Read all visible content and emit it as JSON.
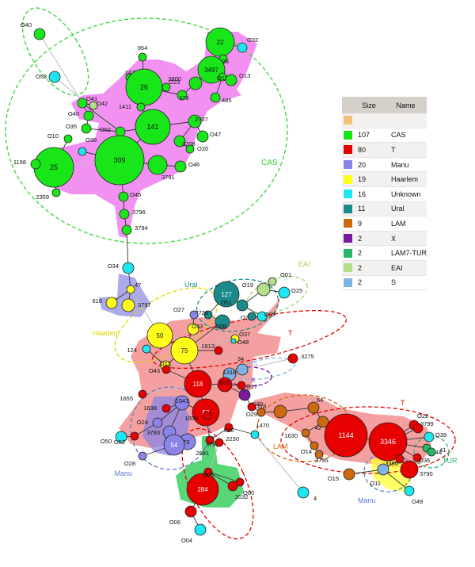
{
  "legend": {
    "header_size": "Size",
    "header_name": "Name",
    "rows": [
      {
        "color": "#f2c27a",
        "size": "",
        "name": ""
      },
      {
        "color": "#19e619",
        "size": "107",
        "name": "CAS"
      },
      {
        "color": "#e60000",
        "size": "80",
        "name": "T"
      },
      {
        "color": "#8a84e6",
        "size": "20",
        "name": "Manu"
      },
      {
        "color": "#ffff1a",
        "size": "19",
        "name": "Haarlem"
      },
      {
        "color": "#1ee6f0",
        "size": "16",
        "name": "Unknown"
      },
      {
        "color": "#1a8a8a",
        "size": "11",
        "name": "Ural"
      },
      {
        "color": "#cc6a12",
        "size": "9",
        "name": "LAM"
      },
      {
        "color": "#7a1a9e",
        "size": "2",
        "name": "X"
      },
      {
        "color": "#26b86a",
        "size": "2",
        "name": "LAM7-TUR"
      },
      {
        "color": "#b2df8a",
        "size": "2",
        "name": "EAI"
      },
      {
        "color": "#7fb2e6",
        "size": "2",
        "name": "S"
      }
    ]
  },
  "group_labels": [
    {
      "key": "cas",
      "text": "CAS",
      "color": "#2ecc2e"
    },
    {
      "key": "eai",
      "text": "EAI",
      "color": "#9ad66e"
    },
    {
      "key": "ural",
      "text": "Ural",
      "color": "#1a8a8a"
    },
    {
      "key": "haarlem",
      "text": "Haarlem",
      "color": "#e0d800"
    },
    {
      "key": "t1",
      "text": "T",
      "color": "#e60000"
    },
    {
      "key": "s",
      "text": "S",
      "color": "#7fb2e6"
    },
    {
      "key": "x",
      "text": "X",
      "color": "#7a1a9e"
    },
    {
      "key": "lam",
      "text": "LAM",
      "color": "#cc6a12"
    },
    {
      "key": "t2",
      "text": "T",
      "color": "#e60000"
    },
    {
      "key": "tur",
      "text": "TUR",
      "color": "#26b86a"
    },
    {
      "key": "manu1",
      "text": "Manu",
      "color": "#5a7ec8"
    },
    {
      "key": "manu2",
      "text": "Manu",
      "color": "#5a7ec8"
    }
  ],
  "nodes": [
    {
      "id": "O40",
      "type": "CAS"
    },
    {
      "id": "O53",
      "type": "Unknown"
    },
    {
      "id": "954",
      "type": "CAS"
    },
    {
      "id": "22",
      "type": "CAS",
      "label_inside": "22"
    },
    {
      "id": "O32",
      "type": "Unknown"
    },
    {
      "id": "O26",
      "type": "CAS"
    },
    {
      "id": "3497",
      "type": "CAS",
      "label_inside": "3497"
    },
    {
      "id": "O12",
      "type": "CAS"
    },
    {
      "id": "O13",
      "type": "CAS"
    },
    {
      "id": "485",
      "type": "CAS"
    },
    {
      "id": "3800",
      "type": "CAS"
    },
    {
      "id": "247",
      "type": "CAS"
    },
    {
      "id": "26",
      "type": "CAS",
      "label_inside": "26"
    },
    {
      "id": "O23",
      "type": "CAS"
    },
    {
      "id": "379",
      "type": "CAS"
    },
    {
      "id": "O41",
      "type": "CAS"
    },
    {
      "id": "O42",
      "type": "EAI"
    },
    {
      "id": "O40b",
      "type": "CAS"
    },
    {
      "id": "141",
      "type": "CAS",
      "label_inside": "141"
    },
    {
      "id": "1411",
      "type": "CAS"
    },
    {
      "id": "2707",
      "type": "CAS"
    },
    {
      "id": "O47",
      "type": "CAS"
    },
    {
      "id": "O02",
      "type": "CAS"
    },
    {
      "id": "O35",
      "type": "CAS"
    },
    {
      "id": "3708",
      "type": "CAS"
    },
    {
      "id": "O20",
      "type": "CAS"
    },
    {
      "id": "O10",
      "type": "CAS"
    },
    {
      "id": "O38",
      "type": "Unknown"
    },
    {
      "id": "25",
      "type": "CAS",
      "label_inside": "25"
    },
    {
      "id": "1198",
      "type": "CAS"
    },
    {
      "id": "309",
      "type": "CAS",
      "label_inside": "309"
    },
    {
      "id": "3791",
      "type": "CAS"
    },
    {
      "id": "O46",
      "type": "CAS"
    },
    {
      "id": "2359",
      "type": "CAS"
    },
    {
      "id": "O45",
      "type": "CAS"
    },
    {
      "id": "3796",
      "type": "CAS"
    },
    {
      "id": "3794",
      "type": "CAS"
    },
    {
      "id": "O34",
      "type": "Unknown"
    },
    {
      "id": "47",
      "type": "Haarlem"
    },
    {
      "id": "610",
      "type": "Haarlem"
    },
    {
      "id": "3797",
      "type": "Haarlem"
    },
    {
      "id": "127",
      "type": "Ural",
      "label_inside": "127"
    },
    {
      "id": "O19",
      "type": "EAI"
    },
    {
      "id": "O01",
      "type": "EAI"
    },
    {
      "id": "O25",
      "type": "Unknown"
    },
    {
      "id": "O51",
      "type": "Ural"
    },
    {
      "id": "2728",
      "type": "Ural"
    },
    {
      "id": "O21",
      "type": "Unknown"
    },
    {
      "id": "O09",
      "type": "Ural"
    },
    {
      "id": "O27",
      "type": "Manu"
    },
    {
      "id": "O33",
      "type": "Haarlem"
    },
    {
      "id": "O08",
      "type": "Ural"
    },
    {
      "id": "50",
      "type": "Haarlem",
      "label_inside": "50"
    },
    {
      "id": "75",
      "type": "Haarlem",
      "label_inside": "75"
    },
    {
      "id": "O37",
      "type": "Haarlem"
    },
    {
      "id": "O48",
      "type": "Unknown"
    },
    {
      "id": "1913",
      "type": "T"
    },
    {
      "id": "124",
      "type": "Unknown"
    },
    {
      "id": "O12b",
      "type": "Haarlem"
    },
    {
      "id": "O43",
      "type": "T"
    },
    {
      "id": "34",
      "type": "S"
    },
    {
      "id": "3275",
      "type": "T"
    },
    {
      "id": "118",
      "type": "T",
      "label_inside": "118"
    },
    {
      "id": "1318",
      "type": "S"
    },
    {
      "id": "831",
      "type": "T"
    },
    {
      "id": "O17",
      "type": "T"
    },
    {
      "id": "1655",
      "type": "T"
    },
    {
      "id": "1638",
      "type": "T"
    },
    {
      "id": "1541",
      "type": "Manu"
    },
    {
      "id": "53",
      "type": "T",
      "label_inside": "53"
    },
    {
      "id": "1009",
      "type": "T"
    },
    {
      "id": "O30",
      "type": "X"
    },
    {
      "id": "O18",
      "type": "T"
    },
    {
      "id": "O29",
      "type": "LAM"
    },
    {
      "id": "O24",
      "type": "Manu"
    },
    {
      "id": "3793",
      "type": "Manu"
    },
    {
      "id": "873",
      "type": "Manu"
    },
    {
      "id": "54",
      "type": "Manu",
      "label_inside": "54"
    },
    {
      "id": "O50",
      "type": "Unknown"
    },
    {
      "id": "O52",
      "type": "T"
    },
    {
      "id": "O28",
      "type": "Manu"
    },
    {
      "id": "3798",
      "type": "T"
    },
    {
      "id": "516",
      "type": "T"
    },
    {
      "id": "2230",
      "type": "Unknown"
    },
    {
      "id": "2691",
      "type": "T"
    },
    {
      "id": "1470",
      "type": "LAM"
    },
    {
      "id": "64",
      "type": "LAM"
    },
    {
      "id": "42",
      "type": "LAM"
    },
    {
      "id": "1630",
      "type": "LAM"
    },
    {
      "id": "O14",
      "type": "LAM"
    },
    {
      "id": "3795",
      "type": "LAM"
    },
    {
      "id": "1144",
      "type": "T",
      "label_inside": "1144"
    },
    {
      "id": "3346",
      "type": "T",
      "label_inside": "3346"
    },
    {
      "id": "O22",
      "type": "T"
    },
    {
      "id": "3799",
      "type": "T"
    },
    {
      "id": "O39",
      "type": "Unknown"
    },
    {
      "id": "O44",
      "type": "LAM7-TUR"
    },
    {
      "id": "41",
      "type": "LAM7-TUR"
    },
    {
      "id": "O36",
      "type": "T"
    },
    {
      "id": "3790",
      "type": "T"
    },
    {
      "id": "3366",
      "type": "T"
    },
    {
      "id": "O15",
      "type": "LAM"
    },
    {
      "id": "O11",
      "type": "S"
    },
    {
      "id": "O49",
      "type": "Unknown"
    },
    {
      "id": "4",
      "type": "Unknown"
    },
    {
      "id": "284",
      "type": "T",
      "label_inside": "284"
    },
    {
      "id": "O03",
      "type": "T"
    },
    {
      "id": "2032",
      "type": "T"
    },
    {
      "id": "O05",
      "type": "T"
    },
    {
      "id": "O06",
      "type": "T"
    },
    {
      "id": "O04",
      "type": "Unknown"
    }
  ],
  "edges": [
    [
      "O40",
      "O41"
    ],
    [
      "O53",
      "O02"
    ],
    [
      "22",
      "3497"
    ],
    [
      "22",
      "O26"
    ],
    [
      "22",
      "O32"
    ],
    [
      "3497",
      "O12"
    ],
    [
      "O12",
      "O13"
    ],
    [
      "O12",
      "485"
    ],
    [
      "3497",
      "3800"
    ],
    [
      "3800",
      "379"
    ],
    [
      "26",
      "379"
    ],
    [
      "26",
      "247"
    ],
    [
      "26",
      "954"
    ],
    [
      "26",
      "O23"
    ],
    [
      "26",
      "1411"
    ],
    [
      "1411",
      "141"
    ],
    [
      "141",
      "2707"
    ],
    [
      "2707",
      "O47"
    ],
    [
      "2707",
      "3708"
    ],
    [
      "3708",
      "O20"
    ],
    [
      "141",
      "O02"
    ],
    [
      "O02",
      "O35"
    ],
    [
      "O02",
      "O41"
    ],
    [
      "O41",
      "O42"
    ],
    [
      "O41",
      "O40b"
    ],
    [
      "O40b",
      "O35"
    ],
    [
      "O38",
      "309"
    ],
    [
      "O10",
      "25"
    ],
    [
      "25",
      "309"
    ],
    [
      "25",
      "1198"
    ],
    [
      "25",
      "2359"
    ],
    [
      "309",
      "3791"
    ],
    [
      "3791",
      "O46"
    ],
    [
      "309",
      "141"
    ],
    [
      "309",
      "O45"
    ],
    [
      "O45",
      "3796"
    ],
    [
      "3796",
      "3794"
    ],
    [
      "3794",
      "O34"
    ],
    [
      "O34",
      "47"
    ],
    [
      "47",
      "610"
    ],
    [
      "47",
      "3797"
    ],
    [
      "47",
      "50"
    ],
    [
      "50",
      "75"
    ],
    [
      "75",
      "O33"
    ],
    [
      "O33",
      "O27"
    ],
    [
      "75",
      "O08"
    ],
    [
      "O08",
      "2728"
    ],
    [
      "2728",
      "127"
    ],
    [
      "127",
      "O51"
    ],
    [
      "O51",
      "O21"
    ],
    [
      "O21",
      "O09"
    ],
    [
      "O51",
      "O19"
    ],
    [
      "O19",
      "O01"
    ],
    [
      "O19",
      "O25"
    ],
    [
      "75",
      "O37"
    ],
    [
      "O37",
      "O48"
    ],
    [
      "75",
      "1913"
    ],
    [
      "75",
      "O12b"
    ],
    [
      "O12b",
      "124"
    ],
    [
      "118",
      "75"
    ],
    [
      "118",
      "O43"
    ],
    [
      "118",
      "1655"
    ],
    [
      "118",
      "831"
    ],
    [
      "831",
      "O17"
    ],
    [
      "831",
      "1318"
    ],
    [
      "1318",
      "34"
    ],
    [
      "34",
      "3275"
    ],
    [
      "118",
      "53"
    ],
    [
      "53",
      "1541"
    ],
    [
      "1541",
      "1638"
    ],
    [
      "1541",
      "O24"
    ],
    [
      "O24",
      "O52"
    ],
    [
      "O52",
      "O50"
    ],
    [
      "1541",
      "3793"
    ],
    [
      "3793",
      "54"
    ],
    [
      "54",
      "873"
    ],
    [
      "54",
      "O28"
    ],
    [
      "53",
      "1009"
    ],
    [
      "53",
      "3798"
    ],
    [
      "3798",
      "516"
    ],
    [
      "516",
      "2230"
    ],
    [
      "2230",
      "4"
    ],
    [
      "3798",
      "2691"
    ],
    [
      "2691",
      "284"
    ],
    [
      "284",
      "O03"
    ],
    [
      "O03",
      "2032"
    ],
    [
      "O03",
      "O05"
    ],
    [
      "284",
      "O06"
    ],
    [
      "O06",
      "O04"
    ],
    [
      "831",
      "O30"
    ],
    [
      "O30",
      "O18"
    ],
    [
      "O18",
      "O29"
    ],
    [
      "O29",
      "1470"
    ],
    [
      "1470",
      "64"
    ],
    [
      "64",
      "42"
    ],
    [
      "42",
      "1630"
    ],
    [
      "1630",
      "O14"
    ],
    [
      "O14",
      "3795"
    ],
    [
      "42",
      "1144"
    ],
    [
      "1144",
      "3346"
    ],
    [
      "3346",
      "O22"
    ],
    [
      "3346",
      "3799"
    ],
    [
      "3346",
      "O39"
    ],
    [
      "3346",
      "O44"
    ],
    [
      "O44",
      "41"
    ],
    [
      "3346",
      "O36"
    ],
    [
      "3346",
      "3366"
    ],
    [
      "3366",
      "3790"
    ],
    [
      "3366",
      "O11"
    ],
    [
      "O11",
      "O15"
    ],
    [
      "O11",
      "O49"
    ]
  ]
}
